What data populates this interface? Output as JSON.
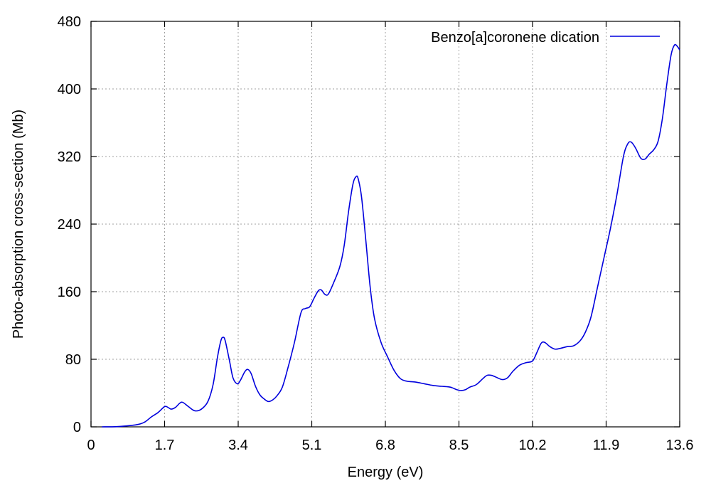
{
  "chart_data": {
    "type": "line",
    "xlabel": "Energy (eV)",
    "ylabel": "Photo-absorption cross-section (Mb)",
    "xlim": [
      0,
      13.6
    ],
    "ylim": [
      0,
      480
    ],
    "x_ticks": [
      "0",
      "1.7",
      "3.4",
      "5.1",
      "6.8",
      "8.5",
      "10.2",
      "11.9",
      "13.6"
    ],
    "x_tick_values": [
      0,
      1.7,
      3.4,
      5.1,
      6.8,
      8.5,
      10.2,
      11.9,
      13.6
    ],
    "y_ticks": [
      "0",
      "80",
      "160",
      "240",
      "320",
      "400",
      "480"
    ],
    "y_tick_values": [
      0,
      80,
      160,
      240,
      320,
      400,
      480
    ],
    "grid": true,
    "legend_position": "top-right",
    "series": [
      {
        "name": "Benzo[a]coronene dication",
        "color": "#0000dd",
        "points": [
          [
            0.25,
            0
          ],
          [
            0.6,
            0.3
          ],
          [
            0.9,
            1.5
          ],
          [
            1.1,
            3
          ],
          [
            1.25,
            6
          ],
          [
            1.4,
            12
          ],
          [
            1.55,
            17
          ],
          [
            1.7,
            24
          ],
          [
            1.78,
            23
          ],
          [
            1.85,
            21
          ],
          [
            1.95,
            23
          ],
          [
            2.05,
            28
          ],
          [
            2.12,
            29
          ],
          [
            2.25,
            24
          ],
          [
            2.4,
            19
          ],
          [
            2.55,
            21
          ],
          [
            2.7,
            30
          ],
          [
            2.82,
            50
          ],
          [
            2.92,
            82
          ],
          [
            3.0,
            102
          ],
          [
            3.05,
            106
          ],
          [
            3.1,
            102
          ],
          [
            3.2,
            78
          ],
          [
            3.28,
            58
          ],
          [
            3.38,
            51
          ],
          [
            3.45,
            55
          ],
          [
            3.55,
            65
          ],
          [
            3.62,
            68
          ],
          [
            3.7,
            63
          ],
          [
            3.8,
            48
          ],
          [
            3.9,
            38
          ],
          [
            4.0,
            33
          ],
          [
            4.1,
            30
          ],
          [
            4.2,
            32
          ],
          [
            4.3,
            37
          ],
          [
            4.42,
            47
          ],
          [
            4.55,
            70
          ],
          [
            4.7,
            100
          ],
          [
            4.85,
            135
          ],
          [
            4.95,
            140
          ],
          [
            5.05,
            142
          ],
          [
            5.15,
            152
          ],
          [
            5.25,
            161
          ],
          [
            5.32,
            162
          ],
          [
            5.4,
            157
          ],
          [
            5.48,
            157
          ],
          [
            5.6,
            170
          ],
          [
            5.75,
            190
          ],
          [
            5.85,
            215
          ],
          [
            5.95,
            255
          ],
          [
            6.05,
            287
          ],
          [
            6.12,
            296
          ],
          [
            6.17,
            294
          ],
          [
            6.25,
            272
          ],
          [
            6.35,
            220
          ],
          [
            6.45,
            165
          ],
          [
            6.55,
            128
          ],
          [
            6.7,
            100
          ],
          [
            6.85,
            83
          ],
          [
            7.0,
            67
          ],
          [
            7.15,
            57
          ],
          [
            7.3,
            54
          ],
          [
            7.5,
            53
          ],
          [
            7.7,
            51
          ],
          [
            7.9,
            49
          ],
          [
            8.1,
            48
          ],
          [
            8.3,
            47
          ],
          [
            8.45,
            44
          ],
          [
            8.55,
            43
          ],
          [
            8.65,
            44
          ],
          [
            8.75,
            47
          ],
          [
            8.9,
            50
          ],
          [
            9.05,
            57
          ],
          [
            9.15,
            61
          ],
          [
            9.25,
            61
          ],
          [
            9.35,
            59
          ],
          [
            9.5,
            56
          ],
          [
            9.62,
            58
          ],
          [
            9.75,
            66
          ],
          [
            9.9,
            73
          ],
          [
            10.05,
            76
          ],
          [
            10.2,
            78
          ],
          [
            10.3,
            88
          ],
          [
            10.4,
            99
          ],
          [
            10.48,
            100
          ],
          [
            10.6,
            95
          ],
          [
            10.72,
            92
          ],
          [
            10.85,
            93
          ],
          [
            11.0,
            95
          ],
          [
            11.15,
            96
          ],
          [
            11.3,
            102
          ],
          [
            11.42,
            112
          ],
          [
            11.55,
            130
          ],
          [
            11.7,
            165
          ],
          [
            11.85,
            200
          ],
          [
            12.0,
            235
          ],
          [
            12.15,
            275
          ],
          [
            12.3,
            320
          ],
          [
            12.4,
            335
          ],
          [
            12.48,
            337
          ],
          [
            12.58,
            330
          ],
          [
            12.7,
            318
          ],
          [
            12.8,
            317
          ],
          [
            12.9,
            323
          ],
          [
            13.0,
            328
          ],
          [
            13.1,
            338
          ],
          [
            13.2,
            365
          ],
          [
            13.3,
            405
          ],
          [
            13.4,
            440
          ],
          [
            13.48,
            452
          ],
          [
            13.55,
            450
          ],
          [
            13.6,
            446
          ]
        ]
      }
    ]
  }
}
